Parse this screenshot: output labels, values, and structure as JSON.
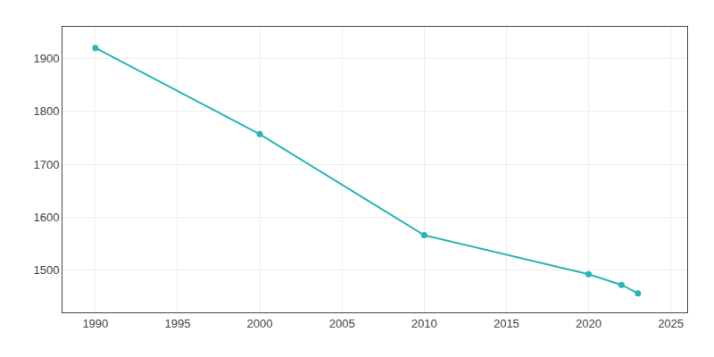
{
  "chart_data": {
    "type": "line",
    "x": [
      1990,
      2000,
      2010,
      2020,
      2022,
      2023
    ],
    "values": [
      1920,
      1757,
      1566,
      1492,
      1472,
      1456
    ],
    "color": "#2ab5b5",
    "marker": "circle",
    "xlim": [
      1988,
      2026
    ],
    "ylim": [
      1420,
      1960
    ],
    "xticks": [
      1990,
      1995,
      2000,
      2005,
      2010,
      2015,
      2020,
      2025
    ],
    "yticks": [
      1500,
      1600,
      1700,
      1800,
      1900
    ],
    "grid": true
  }
}
